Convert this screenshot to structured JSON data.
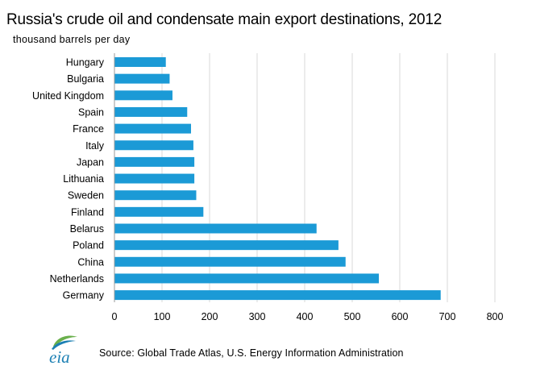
{
  "brand": {
    "logo_text": "eia",
    "bar_color": "#1b9ad6",
    "logo_color": "#1b7fb3",
    "logo_leaf_color": "#6ab04c"
  },
  "source": "Source:  Global Trade  Atlas, U.S. Energy Information  Administration",
  "chart_data": {
    "type": "bar",
    "orientation": "horizontal",
    "title": "Russia's crude oil and condensate main export destinations, 2012",
    "subtitle": "thousand  barrels  per day",
    "xlabel": "",
    "ylabel": "",
    "categories": [
      "Hungary",
      "Bulgaria",
      "United Kingdom",
      "Spain",
      "France",
      "Italy",
      "Japan",
      "Lithuania",
      "Sweden",
      "Finland",
      "Belarus",
      "Poland",
      "China",
      "Netherlands",
      "Germany"
    ],
    "values": [
      108,
      116,
      122,
      153,
      161,
      166,
      168,
      168,
      172,
      187,
      425,
      471,
      486,
      556,
      686
    ],
    "xlim": [
      0,
      800
    ],
    "x_ticks": [
      0,
      100,
      200,
      300,
      400,
      500,
      600,
      700,
      800
    ],
    "grid": "vertical",
    "legend": "none"
  }
}
